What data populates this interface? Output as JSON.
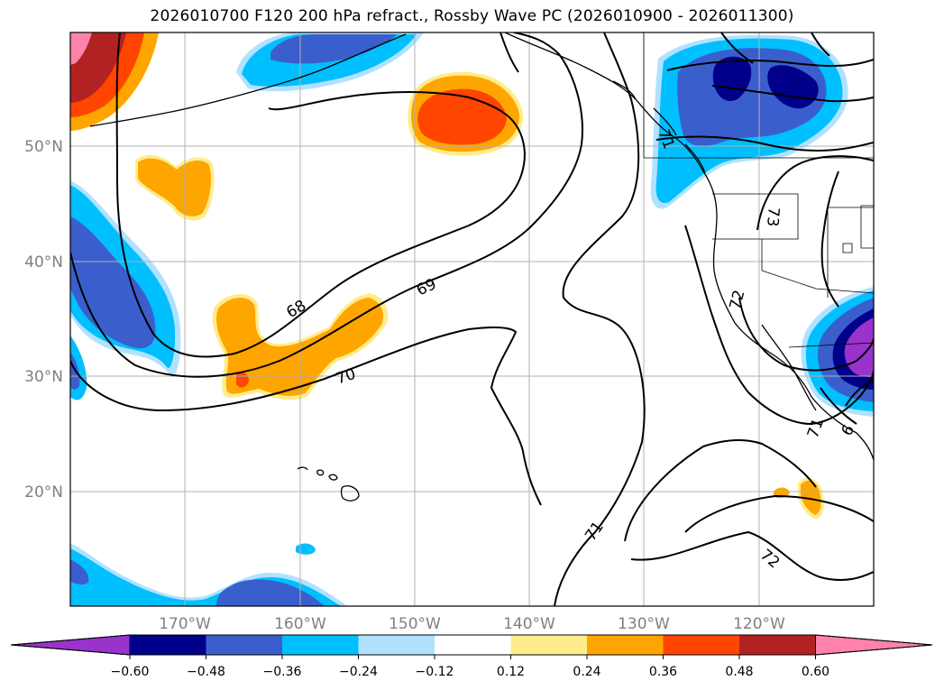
{
  "title": "2026010700 F120 200 hPa refract., Rossby Wave PC (2026010900 - 2026011300)",
  "map": {
    "lon_ticks": [
      "170°W",
      "160°W",
      "150°W",
      "140°W",
      "130°W",
      "120°W"
    ],
    "lat_ticks": [
      "50°N",
      "40°N",
      "30°N",
      "20°N"
    ],
    "contour_labels": [
      "68",
      "69",
      "70",
      "71",
      "71",
      "72",
      "72",
      "71",
      "73",
      "6"
    ]
  },
  "colorbar": {
    "tick_labels": [
      "−0.60",
      "−0.48",
      "−0.36",
      "−0.24",
      "−0.12",
      "0.12",
      "0.24",
      "0.36",
      "0.48",
      "0.60"
    ],
    "colors": [
      "#9933cc",
      "#00008b",
      "#3a5fcd",
      "#00bfff",
      "#b0e2ff",
      "#ffffff",
      "#ffec8b",
      "#ffa500",
      "#ff4500",
      "#b22222",
      "#ff82ab"
    ]
  }
}
